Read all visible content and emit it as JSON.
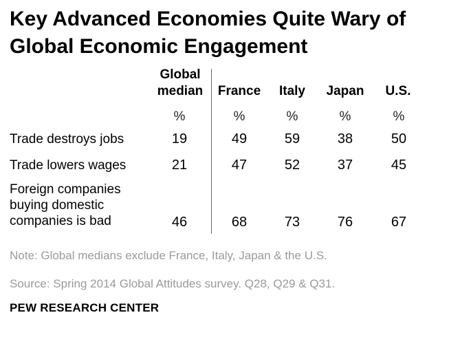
{
  "chart_data": {
    "type": "table",
    "title": "Key Advanced Economies Quite Wary of Global Economic Engagement",
    "columns": [
      "Global median",
      "France",
      "Italy",
      "Japan",
      "U.S."
    ],
    "column_header_lines": [
      [
        "Global",
        "median"
      ],
      [
        "France"
      ],
      [
        "Italy"
      ],
      [
        "Japan"
      ],
      [
        "U.S."
      ]
    ],
    "unit_label": "%",
    "rows": [
      {
        "label": "Trade destroys jobs",
        "values": [
          19,
          49,
          59,
          38,
          50
        ]
      },
      {
        "label": "Trade lowers wages",
        "values": [
          21,
          47,
          52,
          37,
          45
        ]
      },
      {
        "label": "Foreign companies buying domestic companies is bad",
        "values": [
          46,
          68,
          73,
          76,
          67
        ]
      }
    ]
  },
  "title_lines": [
    "Key Advanced Economies Quite Wary of",
    "Global Economic Engagement"
  ],
  "row3_label_lines": [
    "Foreign companies",
    "buying domestic",
    "companies is bad"
  ],
  "note": "Note: Global medians exclude France, Italy, Japan & the U.S.",
  "source": "Source: Spring 2014 Global Attitudes survey. Q28, Q29 & Q31.",
  "brand": "PEW RESEARCH CENTER"
}
